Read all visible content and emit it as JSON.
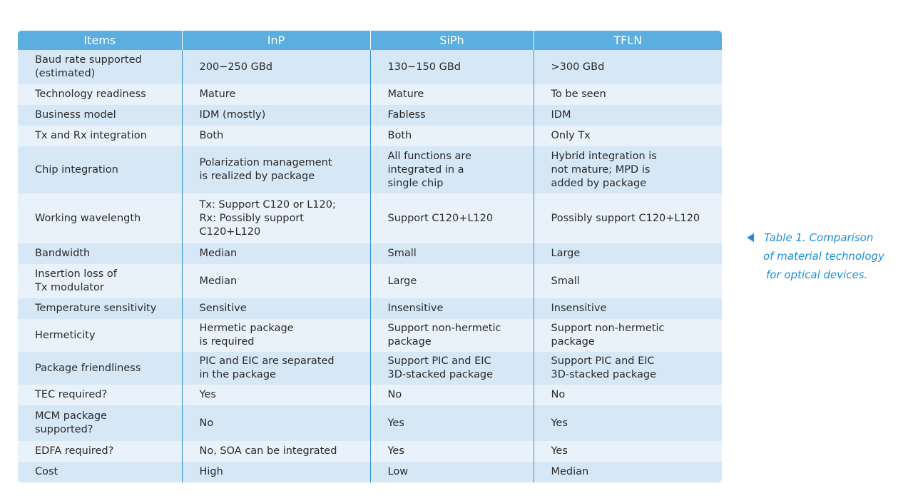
{
  "table": {
    "headers": [
      "Items",
      "InP",
      "SiPh",
      "TFLN"
    ],
    "rows": [
      [
        "Baud rate supported\n(estimated)",
        "200−250 GBd",
        "130−150 GBd",
        ">300 GBd"
      ],
      [
        "Technology readiness",
        "Mature",
        "Mature",
        "To be seen"
      ],
      [
        "Business model",
        "IDM (mostly)",
        "Fabless",
        "IDM"
      ],
      [
        "Tx and Rx integration",
        "Both",
        "Both",
        "Only Tx"
      ],
      [
        "Chip integration",
        "Polarization management\nis realized by package",
        "All functions are\nintegrated in a\nsingle chip",
        "Hybrid integration is\nnot mature; MPD is\nadded by package"
      ],
      [
        "Working wavelength",
        "Tx: Support C120 or L120;\nRx: Possibly support\nC120+L120",
        "Support C120+L120",
        "Possibly support C120+L120"
      ],
      [
        "Bandwidth",
        "Median",
        "Small",
        "Large"
      ],
      [
        "Insertion loss of\nTx modulator",
        "Median",
        "Large",
        "Small"
      ],
      [
        "Temperature sensitivity",
        "Sensitive",
        "Insensitive",
        "Insensitive"
      ],
      [
        "Hermeticity",
        "Hermetic package\nis required",
        "Support non-hermetic\npackage",
        "Support non-hermetic\npackage"
      ],
      [
        "Package friendliness",
        "PIC and EIC are separated\nin the package",
        "Support PIC and EIC\n3D-stacked package",
        "Support PIC and EIC\n3D-stacked package"
      ],
      [
        "TEC required?",
        "Yes",
        "No",
        "No"
      ],
      [
        "MCM package\nsupported?",
        "No",
        "Yes",
        "Yes"
      ],
      [
        "EDFA required?",
        "No, SOA can be integrated",
        "Yes",
        "Yes"
      ],
      [
        "Cost",
        "High",
        "Low",
        "Median"
      ]
    ]
  },
  "caption": {
    "lines": [
      "Table 1. Comparison",
      "of material technology",
      "for optical devices."
    ],
    "icon": "left-triangle-icon"
  },
  "colors": {
    "header_bg": "#5aaee0",
    "row_odd": "#d6e8f6",
    "row_even": "#e9f2fa",
    "caption": "#1f8ed8"
  }
}
